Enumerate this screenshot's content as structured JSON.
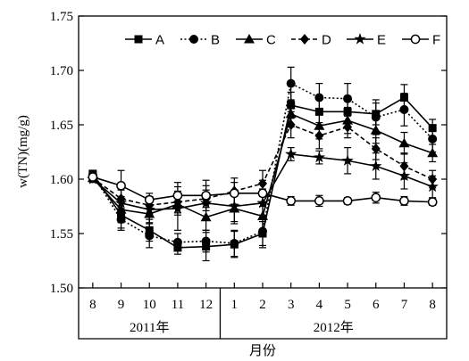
{
  "chart_data": {
    "type": "line",
    "ylabel": "w(TN)(mg/g)",
    "xlabel": "月份",
    "ylim": [
      1.5,
      1.75
    ],
    "yticks": [
      "1.50",
      "1.55",
      "1.60",
      "1.65",
      "1.70",
      "1.75"
    ],
    "categories": [
      "8",
      "9",
      "10",
      "11",
      "12",
      "1",
      "2",
      "3",
      "4",
      "5",
      "6",
      "7",
      "8"
    ],
    "year_groups": [
      {
        "label": "2011年",
        "from": 0,
        "to": 4
      },
      {
        "label": "2012年",
        "from": 5,
        "to": 12
      }
    ],
    "legend_position": "top",
    "grid": false,
    "series": [
      {
        "name": "A",
        "marker": "square",
        "dash": "solid",
        "values": [
          1.605,
          1.567,
          1.553,
          1.537,
          1.538,
          1.54,
          1.55,
          1.668,
          1.662,
          1.662,
          1.66,
          1.675,
          1.647
        ],
        "errors": [
          0.003,
          0.012,
          0.01,
          0.006,
          0.013,
          0.012,
          0.011,
          0.012,
          0.012,
          0.01,
          0.01,
          0.012,
          0.008
        ]
      },
      {
        "name": "B",
        "marker": "circle-filled",
        "dash": "dotted",
        "values": [
          1.604,
          1.563,
          1.548,
          1.542,
          1.543,
          1.541,
          1.552,
          1.688,
          1.675,
          1.674,
          1.657,
          1.664,
          1.637
        ],
        "errors": [
          0.003,
          0.01,
          0.011,
          0.008,
          0.01,
          0.012,
          0.015,
          0.015,
          0.013,
          0.014,
          0.016,
          0.015,
          0.012
        ]
      },
      {
        "name": "C",
        "marker": "triangle",
        "dash": "solid",
        "values": [
          1.601,
          1.572,
          1.568,
          1.577,
          1.565,
          1.573,
          1.566,
          1.66,
          1.649,
          1.654,
          1.645,
          1.633,
          1.624
        ],
        "errors": [
          0.003,
          0.012,
          0.012,
          0.01,
          0.012,
          0.014,
          0.012,
          0.012,
          0.012,
          0.012,
          0.012,
          0.01,
          0.008
        ]
      },
      {
        "name": "D",
        "marker": "diamond",
        "dash": "dashed",
        "values": [
          1.601,
          1.582,
          1.576,
          1.579,
          1.582,
          1.589,
          1.596,
          1.65,
          1.64,
          1.648,
          1.628,
          1.612,
          1.6
        ],
        "errors": [
          0.003,
          0.01,
          0.008,
          0.01,
          0.008,
          0.012,
          0.012,
          0.012,
          0.012,
          0.01,
          0.01,
          0.012,
          0.008
        ]
      },
      {
        "name": "E",
        "marker": "star",
        "dash": "solid",
        "values": [
          1.6,
          1.578,
          1.572,
          1.573,
          1.578,
          1.575,
          1.578,
          1.623,
          1.62,
          1.617,
          1.612,
          1.603,
          1.593
        ],
        "errors": [
          0.003,
          0.012,
          0.012,
          0.02,
          0.016,
          0.014,
          0.013,
          0.006,
          0.006,
          0.012,
          0.012,
          0.012,
          0.01
        ]
      },
      {
        "name": "F",
        "marker": "circle-open",
        "dash": "solid",
        "values": [
          1.602,
          1.594,
          1.581,
          1.585,
          1.585,
          1.587,
          1.587,
          1.58,
          1.58,
          1.58,
          1.583,
          1.58,
          1.579
        ],
        "errors": [
          0.003,
          0.014,
          0.006,
          0.012,
          0.014,
          0.01,
          0.012,
          0.004,
          0.005,
          0.003,
          0.005,
          0.004,
          0.003
        ]
      }
    ]
  }
}
